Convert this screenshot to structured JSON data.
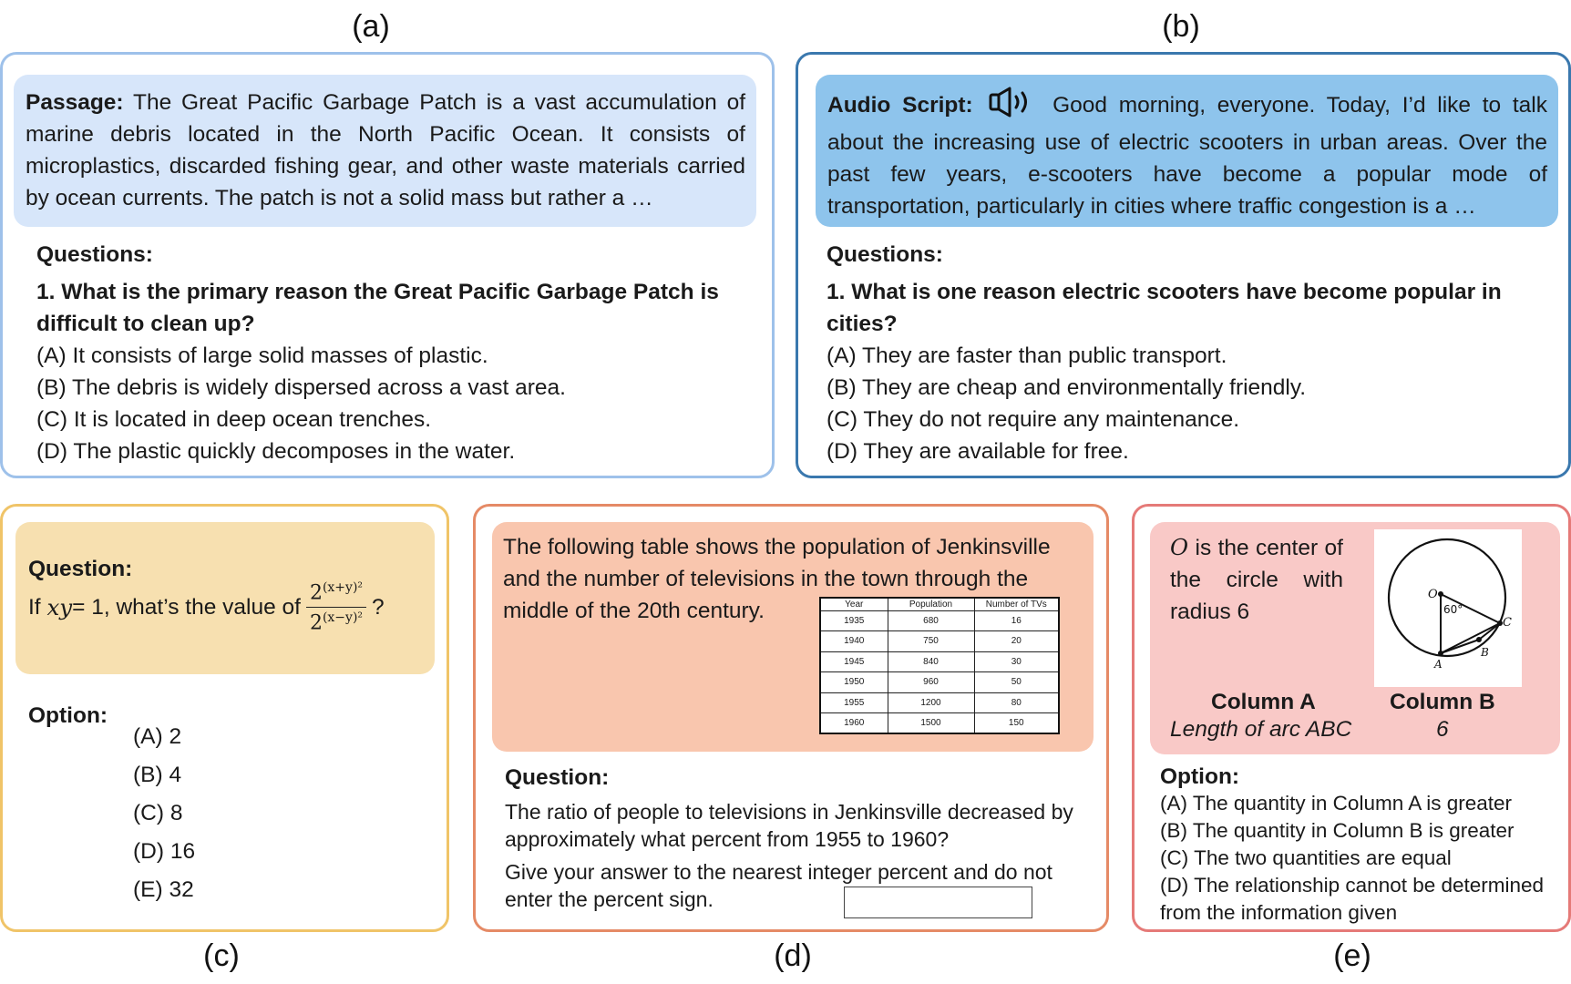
{
  "labels": {
    "a": "(a)",
    "b": "(b)",
    "c": "(c)",
    "d": "(d)",
    "e": "(e)"
  },
  "panel_a": {
    "passage_label": "Passage:",
    "passage_text": " The Great Pacific Garbage Patch is a vast accumulation of marine debris located in the North Pacific Ocean. It consists of microplastics, discarded fishing gear, and other waste materials carried by ocean currents. The patch is not a solid mass but rather a …",
    "questions_label": "Questions:",
    "question": "1. What is the primary reason the Great Pacific Garbage Patch is difficult to clean up?",
    "options": [
      "(A) It consists of large solid masses of plastic.",
      "(B) The debris is widely dispersed across a vast area.",
      "(C) It is located in deep ocean trenches.",
      "(D) The plastic quickly decomposes in the water."
    ]
  },
  "panel_b": {
    "script_label": "Audio Script:",
    "speaker_icon": "speaker-icon",
    "script_text": " Good morning, everyone. Today, I’d like to talk about the increasing use of electric scooters in urban areas. Over the past few years, e-scooters have become a popular mode of transportation, particularly in cities where traffic congestion is a …",
    "questions_label": "Questions:",
    "question": "1. What is one reason electric scooters have become popular in cities?",
    "options": [
      "(A) They are faster than public transport.",
      "(B) They are cheap and environmentally friendly.",
      "(C) They do not require any maintenance.",
      "(D) They are available for free."
    ]
  },
  "panel_c": {
    "question_label": "Question:",
    "question_prefix": "If ",
    "question_var": "xy",
    "question_eq": " = 1, what’s the value of",
    "frac_num_base": "2",
    "frac_num_exp": "(x+y)²",
    "frac_den_base": "2",
    "frac_den_exp": "(x−y)²",
    "question_suffix": "?",
    "option_label": "Option:",
    "options": [
      "(A) 2",
      "(B) 4",
      "(C) 8",
      "(D) 16",
      "(E) 32"
    ]
  },
  "panel_d": {
    "intro": "The following table shows the population of Jenkinsville and the number of televisions in the town through the middle of the 20th century.",
    "table_headers": [
      "Year",
      "Population",
      "Number of TVs"
    ],
    "table_rows": [
      [
        "1935",
        "680",
        "16"
      ],
      [
        "1940",
        "750",
        "20"
      ],
      [
        "1945",
        "840",
        "30"
      ],
      [
        "1950",
        "960",
        "50"
      ],
      [
        "1955",
        "1200",
        "80"
      ],
      [
        "1960",
        "1500",
        "150"
      ]
    ],
    "question_label": "Question:",
    "question": "The ratio of people to televisions in Jenkinsville decreased by approximately what percent from 1955 to 1960?",
    "instruction": "Give your answer to the nearest integer percent and do not enter the percent sign."
  },
  "panel_e": {
    "statement_o": "O",
    "statement_text": " is the center of the circle with radius 6",
    "diagram": {
      "center": "O",
      "angle": "60°",
      "points": [
        "A",
        "B",
        "C"
      ]
    },
    "col_a_header": "Column A",
    "col_b_header": "Column B",
    "col_a_value": "Length of arc ABC",
    "col_b_value": "6",
    "option_label": "Option:",
    "options": [
      "(A) The quantity in Column A is greater",
      "(B) The quantity in Column B is greater",
      "(C) The two quantities are equal",
      "(D) The relationship cannot be determined from the information given"
    ]
  },
  "colors": {
    "a_border": "#9ec1ea",
    "a_fill": "#d7e6fa",
    "b_border": "#3a78ae",
    "b_fill": "#8ec4ec",
    "c_border": "#f0c468",
    "c_fill": "#f7e0b0",
    "d_border": "#e58a66",
    "d_fill": "#f9c6ae",
    "e_border": "#e57a78",
    "e_fill": "#f9c9c7"
  }
}
